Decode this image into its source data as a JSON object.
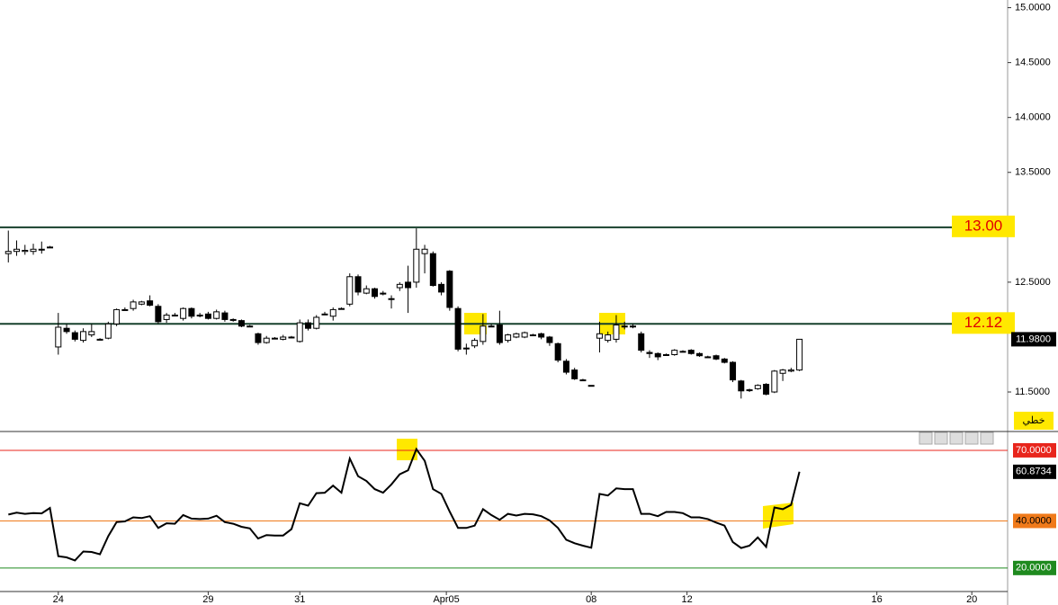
{
  "chart_data": [
    {
      "type": "candlestick",
      "x": [
        0,
        1,
        2,
        3,
        4,
        5,
        6,
        7,
        8,
        9,
        10,
        11,
        12,
        13,
        14,
        15,
        16,
        17,
        18,
        19,
        20,
        21,
        22,
        23,
        24,
        25,
        26,
        27,
        28,
        29,
        30,
        31,
        32,
        33,
        34,
        35,
        36,
        37,
        38,
        39,
        40,
        41,
        42,
        43,
        44,
        45,
        46,
        47,
        48,
        49,
        50,
        51,
        52,
        53,
        54,
        55,
        56,
        57,
        58,
        59,
        60,
        61,
        62,
        63,
        64,
        65,
        66,
        67,
        68,
        69,
        70,
        71,
        72,
        73,
        74,
        75,
        76,
        77,
        78,
        79,
        80,
        81,
        82,
        83,
        84,
        85,
        86,
        87,
        88,
        89,
        90,
        91,
        92,
        93,
        94,
        95
      ],
      "open": [
        12.76,
        12.78,
        12.78,
        12.78,
        12.8,
        12.82,
        11.91,
        12.08,
        12.04,
        11.97,
        12.02,
        11.98,
        11.99,
        12.12,
        12.25,
        12.26,
        12.3,
        12.33,
        12.28,
        12.16,
        12.2,
        12.17,
        12.26,
        12.2,
        12.21,
        12.17,
        12.22,
        12.16,
        12.15,
        12.1,
        12.03,
        11.95,
        11.99,
        11.98,
        12.0,
        11.96,
        12.13,
        12.08,
        12.21,
        12.19,
        12.26,
        12.3,
        12.55,
        12.4,
        12.44,
        12.4,
        12.35,
        12.45,
        12.5,
        12.5,
        12.76,
        12.76,
        12.48,
        12.6,
        12.26,
        11.9,
        11.92,
        11.96,
        12.1,
        12.11,
        11.97,
        12.0,
        12.0,
        12.02,
        12.03,
        12.0,
        11.94,
        11.78,
        11.7,
        11.61,
        11.56,
        11.99,
        11.97,
        11.98,
        12.1,
        12.1,
        12.03,
        11.86,
        11.85,
        11.84,
        11.84,
        11.87,
        11.88,
        11.85,
        11.82,
        11.83,
        11.8,
        11.77,
        11.6,
        11.52,
        11.53,
        11.57,
        11.5,
        11.67,
        11.69,
        11.7
      ],
      "high": [
        12.97,
        12.88,
        12.84,
        12.85,
        12.87,
        12.83,
        12.22,
        12.12,
        12.06,
        12.08,
        12.12,
        11.99,
        12.14,
        12.26,
        12.27,
        12.34,
        12.33,
        12.38,
        12.3,
        12.22,
        12.22,
        12.27,
        12.27,
        12.22,
        12.23,
        12.25,
        12.24,
        12.17,
        12.16,
        12.11,
        12.04,
        12.01,
        12.0,
        12.02,
        12.01,
        12.16,
        12.16,
        12.2,
        12.23,
        12.27,
        12.27,
        12.58,
        12.57,
        12.47,
        12.45,
        12.42,
        12.38,
        12.5,
        12.65,
        12.99,
        12.84,
        12.78,
        12.5,
        12.61,
        12.28,
        11.94,
        11.99,
        12.21,
        12.12,
        12.24,
        12.03,
        12.04,
        12.05,
        12.03,
        12.04,
        12.01,
        11.95,
        11.8,
        11.72,
        11.62,
        11.56,
        12.14,
        12.05,
        12.2,
        12.14,
        12.12,
        12.05,
        11.88,
        11.86,
        11.85,
        11.89,
        11.88,
        11.89,
        11.86,
        11.83,
        11.84,
        11.81,
        11.78,
        11.61,
        11.53,
        11.57,
        11.58,
        11.7,
        11.71,
        11.72,
        11.98
      ],
      "low": [
        12.68,
        12.74,
        12.75,
        12.75,
        12.76,
        12.82,
        11.84,
        12.03,
        11.96,
        11.95,
        12.0,
        11.97,
        11.98,
        12.1,
        12.24,
        12.24,
        12.29,
        12.28,
        12.12,
        12.13,
        12.19,
        12.15,
        12.17,
        12.18,
        12.16,
        12.16,
        12.14,
        12.14,
        12.09,
        12.09,
        11.93,
        11.94,
        11.98,
        11.97,
        11.99,
        11.95,
        12.06,
        12.07,
        12.2,
        12.15,
        12.25,
        12.28,
        12.38,
        12.39,
        12.35,
        12.38,
        12.26,
        12.42,
        12.22,
        12.45,
        12.58,
        12.46,
        12.38,
        12.24,
        11.87,
        11.84,
        11.9,
        11.93,
        12.09,
        11.93,
        11.95,
        11.99,
        11.99,
        12.01,
        11.98,
        11.92,
        11.77,
        11.66,
        11.61,
        11.6,
        11.55,
        11.86,
        11.95,
        11.95,
        12.07,
        12.08,
        11.86,
        11.81,
        11.79,
        11.83,
        11.83,
        11.86,
        11.84,
        11.82,
        11.81,
        11.79,
        11.76,
        11.59,
        11.44,
        11.5,
        11.52,
        11.47,
        11.49,
        11.6,
        11.68,
        11.69
      ],
      "close": [
        12.78,
        12.8,
        12.79,
        12.8,
        12.8,
        12.82,
        12.09,
        12.05,
        11.98,
        12.05,
        12.05,
        11.98,
        12.12,
        12.25,
        12.25,
        12.32,
        12.32,
        12.29,
        12.14,
        12.2,
        12.2,
        12.26,
        12.19,
        12.2,
        12.17,
        12.23,
        12.16,
        12.16,
        12.1,
        12.1,
        11.95,
        11.99,
        11.99,
        12.0,
        12.0,
        12.13,
        12.08,
        12.18,
        12.21,
        12.25,
        12.26,
        12.55,
        12.41,
        12.44,
        12.37,
        12.4,
        12.35,
        12.48,
        12.45,
        12.8,
        12.8,
        12.47,
        12.41,
        12.27,
        11.89,
        11.9,
        11.97,
        12.1,
        12.1,
        11.95,
        12.02,
        12.03,
        12.04,
        12.02,
        12.0,
        11.95,
        11.79,
        11.68,
        11.62,
        11.61,
        11.56,
        12.03,
        12.02,
        12.11,
        12.1,
        12.1,
        11.88,
        11.85,
        11.82,
        11.84,
        11.88,
        11.87,
        11.85,
        11.83,
        11.82,
        11.8,
        11.77,
        11.61,
        11.51,
        11.52,
        11.56,
        11.48,
        11.69,
        11.7,
        11.7,
        11.98
      ],
      "up_color": "#ffffff",
      "down_color": "#000000",
      "xlim": [
        -1,
        120
      ],
      "ylim": [
        11.14,
        15.07
      ],
      "yticks": [
        {
          "value": 11.5,
          "label": "11.5000"
        },
        {
          "value": 12.5,
          "label": "12.5000"
        },
        {
          "value": 13.5,
          "label": "13.5000"
        },
        {
          "value": 14.0,
          "label": "14.0000"
        },
        {
          "value": 14.5,
          "label": "14.5000"
        },
        {
          "value": 15.0,
          "label": "15.0000"
        }
      ],
      "hlines": [
        {
          "value": 13.0,
          "label": "13.00",
          "color": "#17402c"
        },
        {
          "value": 12.12,
          "label": "12.12",
          "color": "#17402c"
        }
      ],
      "last_price": {
        "value": 11.98,
        "label": "11.9800"
      },
      "style_label": "خطي"
    },
    {
      "type": "line",
      "x": [
        0,
        1,
        2,
        3,
        4,
        5,
        6,
        7,
        8,
        9,
        10,
        11,
        12,
        13,
        14,
        15,
        16,
        17,
        18,
        19,
        20,
        21,
        22,
        23,
        24,
        25,
        26,
        27,
        28,
        29,
        30,
        31,
        32,
        33,
        34,
        35,
        36,
        37,
        38,
        39,
        40,
        41,
        42,
        43,
        44,
        45,
        46,
        47,
        48,
        49,
        50,
        51,
        52,
        53,
        54,
        55,
        56,
        57,
        58,
        59,
        60,
        61,
        62,
        63,
        64,
        65,
        66,
        67,
        68,
        69,
        70,
        71,
        72,
        73,
        74,
        75,
        76,
        77,
        78,
        79,
        80,
        81,
        82,
        83,
        84,
        85,
        86,
        87,
        88,
        89,
        90,
        91,
        92,
        93,
        94,
        95
      ],
      "series": [
        {
          "color": "#000000",
          "values": [
            42.7,
            43.5,
            43.0,
            43.3,
            43.2,
            45.5,
            25.0,
            24.5,
            23.2,
            27.0,
            26.8,
            25.8,
            33.5,
            39.5,
            39.8,
            41.5,
            41.2,
            42.0,
            37.0,
            39.0,
            38.8,
            42.5,
            41.0,
            40.8,
            41.0,
            42.2,
            39.5,
            38.8,
            37.5,
            36.8,
            32.5,
            34.0,
            33.8,
            33.8,
            36.5,
            47.5,
            46.5,
            51.8,
            52.0,
            55.0,
            52.0,
            66.5,
            59.0,
            57.0,
            53.5,
            52.0,
            55.5,
            59.8,
            61.5,
            70.5,
            65.5,
            53.5,
            51.5,
            44.0,
            37.0,
            37.0,
            38.0,
            45.0,
            42.5,
            40.5,
            43.0,
            42.3,
            43.0,
            42.8,
            42.0,
            40.2,
            37.0,
            32.0,
            30.5,
            29.5,
            28.6,
            51.5,
            50.8,
            53.8,
            53.5,
            53.5,
            43.0,
            43.0,
            42.0,
            43.8,
            43.8,
            43.3,
            41.5,
            41.5,
            40.8,
            39.3,
            38.0,
            31.0,
            28.5,
            29.5,
            33.0,
            29.0,
            45.7,
            45.0,
            46.8,
            60.8734
          ]
        }
      ],
      "xlim": [
        -1,
        120
      ],
      "ylim": [
        10,
        78
      ],
      "xticks": [
        {
          "value": 6,
          "label": "24"
        },
        {
          "value": 24,
          "label": "29"
        },
        {
          "value": 35,
          "label": "31"
        },
        {
          "value": 52.6,
          "label": "Apr05"
        },
        {
          "value": 70,
          "label": "08"
        },
        {
          "value": 81.5,
          "label": "12"
        },
        {
          "value": 104.3,
          "label": "16"
        },
        {
          "value": 115.7,
          "label": "20"
        }
      ],
      "hlines": [
        {
          "value": 70,
          "label": "70.0000",
          "color": "#e8251c",
          "text_color": "#ffffff"
        },
        {
          "value": 40,
          "label": "40.0000",
          "color": "#f07a1a",
          "text_color": "#000000"
        },
        {
          "value": 20,
          "label": "20.0000",
          "color": "#1f8a1f",
          "text_color": "#ffffff"
        }
      ]
    }
  ]
}
